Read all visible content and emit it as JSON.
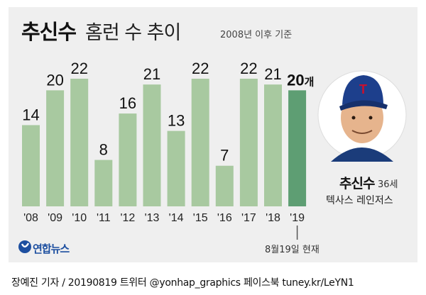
{
  "title": {
    "name": "추신수",
    "rest": "홈런 수 추이",
    "note": "2008년 이후 기준"
  },
  "person": {
    "name": "추신수",
    "age": "36세",
    "team": "텍사스 레인저스"
  },
  "current_note": "8월19일 현재",
  "logo": "연합뉴스",
  "footer": "장예진 기자 / 20190819 트위터 @yonhap_graphics  페이스북 tuney.kr/LeYN1",
  "colors": {
    "bar": "#a8c9a0",
    "bar_highlight": "#5e9e73",
    "panel": "#efefef",
    "logo": "#1d4fa0"
  },
  "chart_data": {
    "type": "bar",
    "title": "추신수 홈런 수 추이",
    "subtitle": "2008년 이후 기준",
    "categories": [
      "'08",
      "'09",
      "'10",
      "'11",
      "'12",
      "'13",
      "'14",
      "'15",
      "'16",
      "'17",
      "'18",
      "'19"
    ],
    "values": [
      14,
      20,
      22,
      8,
      16,
      21,
      13,
      22,
      7,
      22,
      21,
      20
    ],
    "value_labels": [
      "14",
      "20",
      "22",
      "8",
      "16",
      "21",
      "13",
      "22",
      "7",
      "22",
      "21",
      "20"
    ],
    "highlight_index": 11,
    "highlight_unit": "개",
    "xlabel": "",
    "ylabel": "",
    "ylim": [
      0,
      22
    ],
    "grid": false,
    "legend": "none"
  }
}
